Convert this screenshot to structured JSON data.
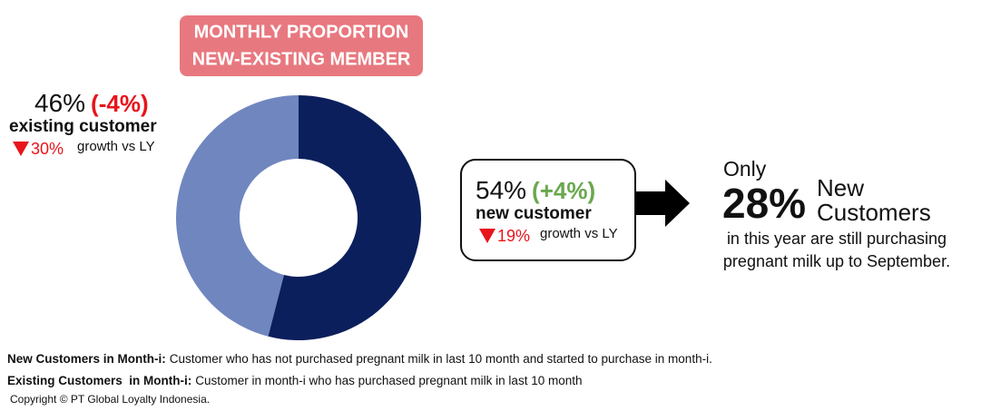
{
  "chart_data": {
    "type": "donut",
    "title": [
      "MONTHLY PROPORTION",
      "NEW-EXISTING MEMBER"
    ],
    "categories": [
      "existing customer",
      "new customer"
    ],
    "values": [
      46,
      54
    ],
    "value_labels": [
      "46%",
      "54%"
    ],
    "colors": [
      "#7086bf",
      "#0b1f5c"
    ],
    "changes": [
      -4,
      4
    ],
    "change_labels": [
      "(-4%)",
      "(+4%)"
    ],
    "growth_vs_ly": [
      -30,
      -19
    ],
    "growth_labels": [
      "30%",
      "19%"
    ],
    "growth_text": "growth vs LY"
  },
  "highlight": {
    "prefix": "Only",
    "value_label": "28%",
    "label_lines": [
      "New",
      "Customers"
    ],
    "caption": [
      "in this year are still purchasing",
      "pregnant milk up to September."
    ]
  },
  "definitions": [
    {
      "term": "New Customers in Month-i:",
      "text": "Customer who has not purchased pregnant milk in last 10 month and started to purchase in month-i."
    },
    {
      "term": "Existing Customers  in Month-i:",
      "text": "Customer in month-i who has purchased pregnant milk in last 10 month"
    }
  ],
  "copyright": "Copyright © PT Global Loyalty Indonesia."
}
